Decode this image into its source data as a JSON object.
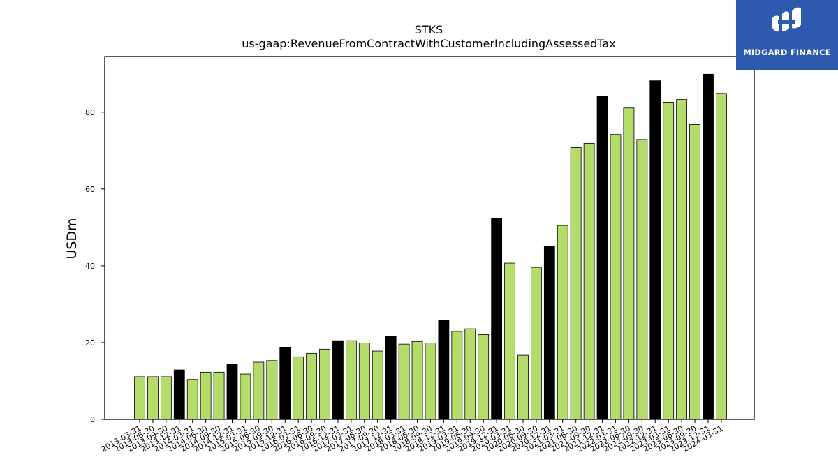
{
  "chart_data": {
    "type": "bar",
    "title": "STKS",
    "subtitle": "us-gaap:RevenueFromContractWithCustomerIncludingAssessedTax",
    "xlabel": "",
    "ylabel": "USDm",
    "ylim": [
      0,
      94.5
    ],
    "yticks": [
      0,
      20,
      40,
      60,
      80
    ],
    "grid": false,
    "colors": {
      "quarter": "#b3dc6a",
      "fiscal_year_end": "#000000",
      "edge": "#000000"
    },
    "categories": [
      "2013-03-31",
      "2013-06-30",
      "2013-09-30",
      "2013-12-31",
      "2014-03-31",
      "2014-06-30",
      "2014-09-30",
      "2014-12-31",
      "2015-03-31",
      "2015-06-30",
      "2015-09-30",
      "2015-12-31",
      "2016-03-31",
      "2016-06-30",
      "2016-09-30",
      "2016-12-31",
      "2017-03-31",
      "2017-06-30",
      "2017-09-30",
      "2017-12-31",
      "2018-03-31",
      "2018-06-30",
      "2018-09-30",
      "2018-12-31",
      "2019-03-31",
      "2019-06-30",
      "2019-09-30",
      "2019-12-31",
      "2020-03-31",
      "2020-06-30",
      "2020-09-30",
      "2020-12-31",
      "2021-03-31",
      "2021-06-30",
      "2021-09-30",
      "2021-12-31",
      "2022-03-31",
      "2022-06-30",
      "2022-09-30",
      "2022-12-31",
      "2023-03-31",
      "2023-06-30",
      "2023-09-30",
      "2023-12-31",
      "2024-03-31"
    ],
    "values": [
      11.1,
      11.1,
      11.1,
      12.9,
      10.4,
      12.3,
      12.3,
      14.4,
      11.8,
      14.9,
      15.3,
      18.7,
      16.3,
      17.2,
      18.3,
      20.5,
      20.5,
      19.9,
      17.8,
      21.6,
      19.6,
      20.3,
      19.9,
      25.8,
      22.9,
      23.6,
      22.1,
      52.3,
      40.7,
      16.7,
      39.6,
      45.1,
      50.5,
      70.8,
      71.9,
      84.1,
      74.2,
      81.1,
      72.9,
      88.2,
      82.6,
      83.3,
      76.8,
      89.9,
      84.9
    ],
    "highlight": [
      false,
      false,
      false,
      true,
      false,
      false,
      false,
      true,
      false,
      false,
      false,
      true,
      false,
      false,
      false,
      true,
      false,
      false,
      false,
      true,
      false,
      false,
      false,
      true,
      false,
      false,
      false,
      true,
      false,
      false,
      false,
      true,
      false,
      false,
      false,
      true,
      false,
      false,
      false,
      true,
      false,
      false,
      false,
      true,
      false
    ]
  },
  "logo": {
    "text": "MIDGARD FINANCE",
    "icon": "midgard-logo-icon",
    "background": "#2d59ae"
  }
}
